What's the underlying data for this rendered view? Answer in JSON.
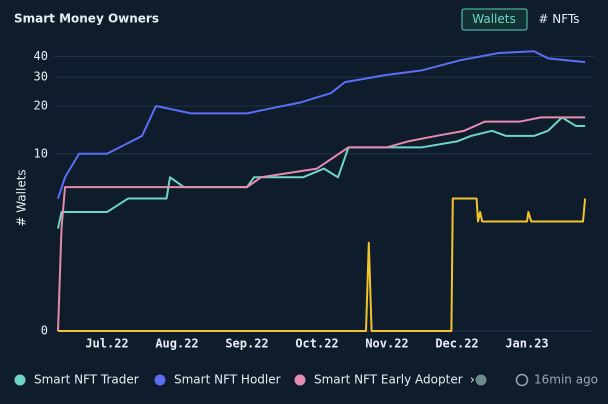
{
  "chart_data": {
    "type": "line",
    "title": "Smart Money Owners",
    "toggle": [
      "Wallets",
      "# NFTs"
    ],
    "y_label": "# Wallets",
    "y_scale": "log1p",
    "updated": "16min ago",
    "xlim": [
      0.25,
      7.9
    ],
    "xticks": [
      {
        "value": 1,
        "label": "Jul.22"
      },
      {
        "value": 2,
        "label": "Aug.22"
      },
      {
        "value": 3,
        "label": "Sep.22"
      },
      {
        "value": 4,
        "label": "Oct.22"
      },
      {
        "value": 5,
        "label": "Nov.22"
      },
      {
        "value": 6,
        "label": "Dec.22"
      },
      {
        "value": 7,
        "label": "Jan.23"
      }
    ],
    "ylim": [
      0,
      45
    ],
    "yticks": [
      0,
      10,
      20,
      30,
      40
    ],
    "grid": true,
    "series": [
      {
        "name": "Smart NFT Trader",
        "color": "#6fd6c6",
        "x": [
          0.3,
          0.35,
          1.0,
          1.3,
          1.85,
          1.9,
          2.1,
          3.0,
          3.1,
          3.8,
          4.1,
          4.3,
          4.45,
          5.0,
          5.5,
          6.0,
          6.2,
          6.5,
          6.7,
          7.1,
          7.3,
          7.5,
          7.7,
          7.83
        ],
        "values": [
          3,
          4,
          4,
          5,
          5,
          7,
          6,
          6,
          7,
          7,
          8,
          7,
          11,
          11,
          11,
          12,
          13,
          14,
          13,
          13,
          14,
          17,
          15,
          15
        ]
      },
      {
        "name": "Smart NFT Hodler",
        "color": "#5b6ef5",
        "x": [
          0.3,
          0.4,
          0.6,
          1.0,
          1.5,
          1.7,
          2.2,
          3.0,
          3.26,
          3.76,
          4.2,
          4.4,
          5.0,
          5.5,
          6.05,
          6.6,
          7.1,
          7.3,
          7.83
        ],
        "values": [
          5,
          7,
          10,
          10,
          13,
          20,
          18,
          18,
          19,
          21,
          24,
          28,
          31,
          33,
          38,
          42,
          43,
          39,
          37
        ]
      },
      {
        "name": "Smart NFT Early Adopter",
        "color": "#e68bb0",
        "x": [
          0.3,
          0.35,
          0.4,
          3.0,
          3.2,
          4.0,
          4.45,
          5.0,
          5.3,
          5.7,
          6.1,
          6.4,
          6.9,
          7.2,
          7.83
        ],
        "values": [
          0,
          3,
          6,
          6,
          7,
          8,
          11,
          11,
          12,
          13,
          14,
          16,
          16,
          17,
          17
        ]
      },
      {
        "name": null,
        "color": "#f2c230",
        "x": [
          0.3,
          4.7,
          4.74,
          4.78,
          5.92,
          5.94,
          6.28,
          6.3,
          6.33,
          6.36,
          7.0,
          7.02,
          7.06,
          7.8,
          7.83
        ],
        "values": [
          0,
          0,
          2.3,
          0,
          0,
          5,
          5,
          3.4,
          4,
          3.4,
          3.4,
          4,
          3.4,
          3.4,
          5
        ]
      }
    ]
  }
}
